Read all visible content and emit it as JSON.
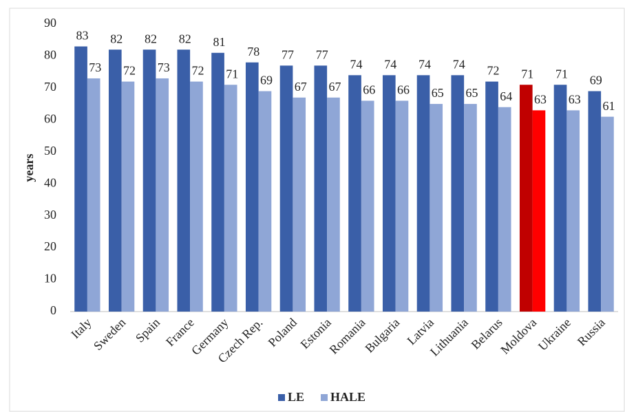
{
  "chart_data": {
    "type": "bar",
    "y_label": "years",
    "categories": [
      "Italy",
      "Sweden",
      "Spain",
      "France",
      "Germany",
      "Czech Rep.",
      "Poland",
      "Estonia",
      "Romania",
      "Bulgaria",
      "Latvia",
      "Lithuania",
      "Belarus",
      "Moldova",
      "Ukraine",
      "Russia"
    ],
    "series": [
      {
        "name": "LE",
        "color": "#3a5fa8",
        "colors": [
          "#3a5fa8",
          "#3a5fa8",
          "#3a5fa8",
          "#3a5fa8",
          "#3a5fa8",
          "#3a5fa8",
          "#3a5fa8",
          "#3a5fa8",
          "#3a5fa8",
          "#3a5fa8",
          "#3a5fa8",
          "#3a5fa8",
          "#3a5fa8",
          "#c00000",
          "#3a5fa8",
          "#3a5fa8"
        ],
        "values": [
          83,
          82,
          82,
          82,
          81,
          78,
          77,
          77,
          74,
          74,
          74,
          74,
          72,
          71,
          71,
          69
        ]
      },
      {
        "name": "HALE",
        "color": "#8fa6d6",
        "colors": [
          "#8fa6d6",
          "#8fa6d6",
          "#8fa6d6",
          "#8fa6d6",
          "#8fa6d6",
          "#8fa6d6",
          "#8fa6d6",
          "#8fa6d6",
          "#8fa6d6",
          "#8fa6d6",
          "#8fa6d6",
          "#8fa6d6",
          "#8fa6d6",
          "#ff0000",
          "#8fa6d6",
          "#8fa6d6"
        ],
        "values": [
          73,
          72,
          73,
          72,
          71,
          69,
          67,
          67,
          66,
          66,
          65,
          65,
          64,
          63,
          63,
          61
        ]
      }
    ],
    "ylim": [
      0,
      90
    ],
    "yticks": [
      0,
      10,
      20,
      30,
      40,
      50,
      60,
      70,
      80,
      90
    ],
    "grid": false,
    "legend": "bottom"
  }
}
